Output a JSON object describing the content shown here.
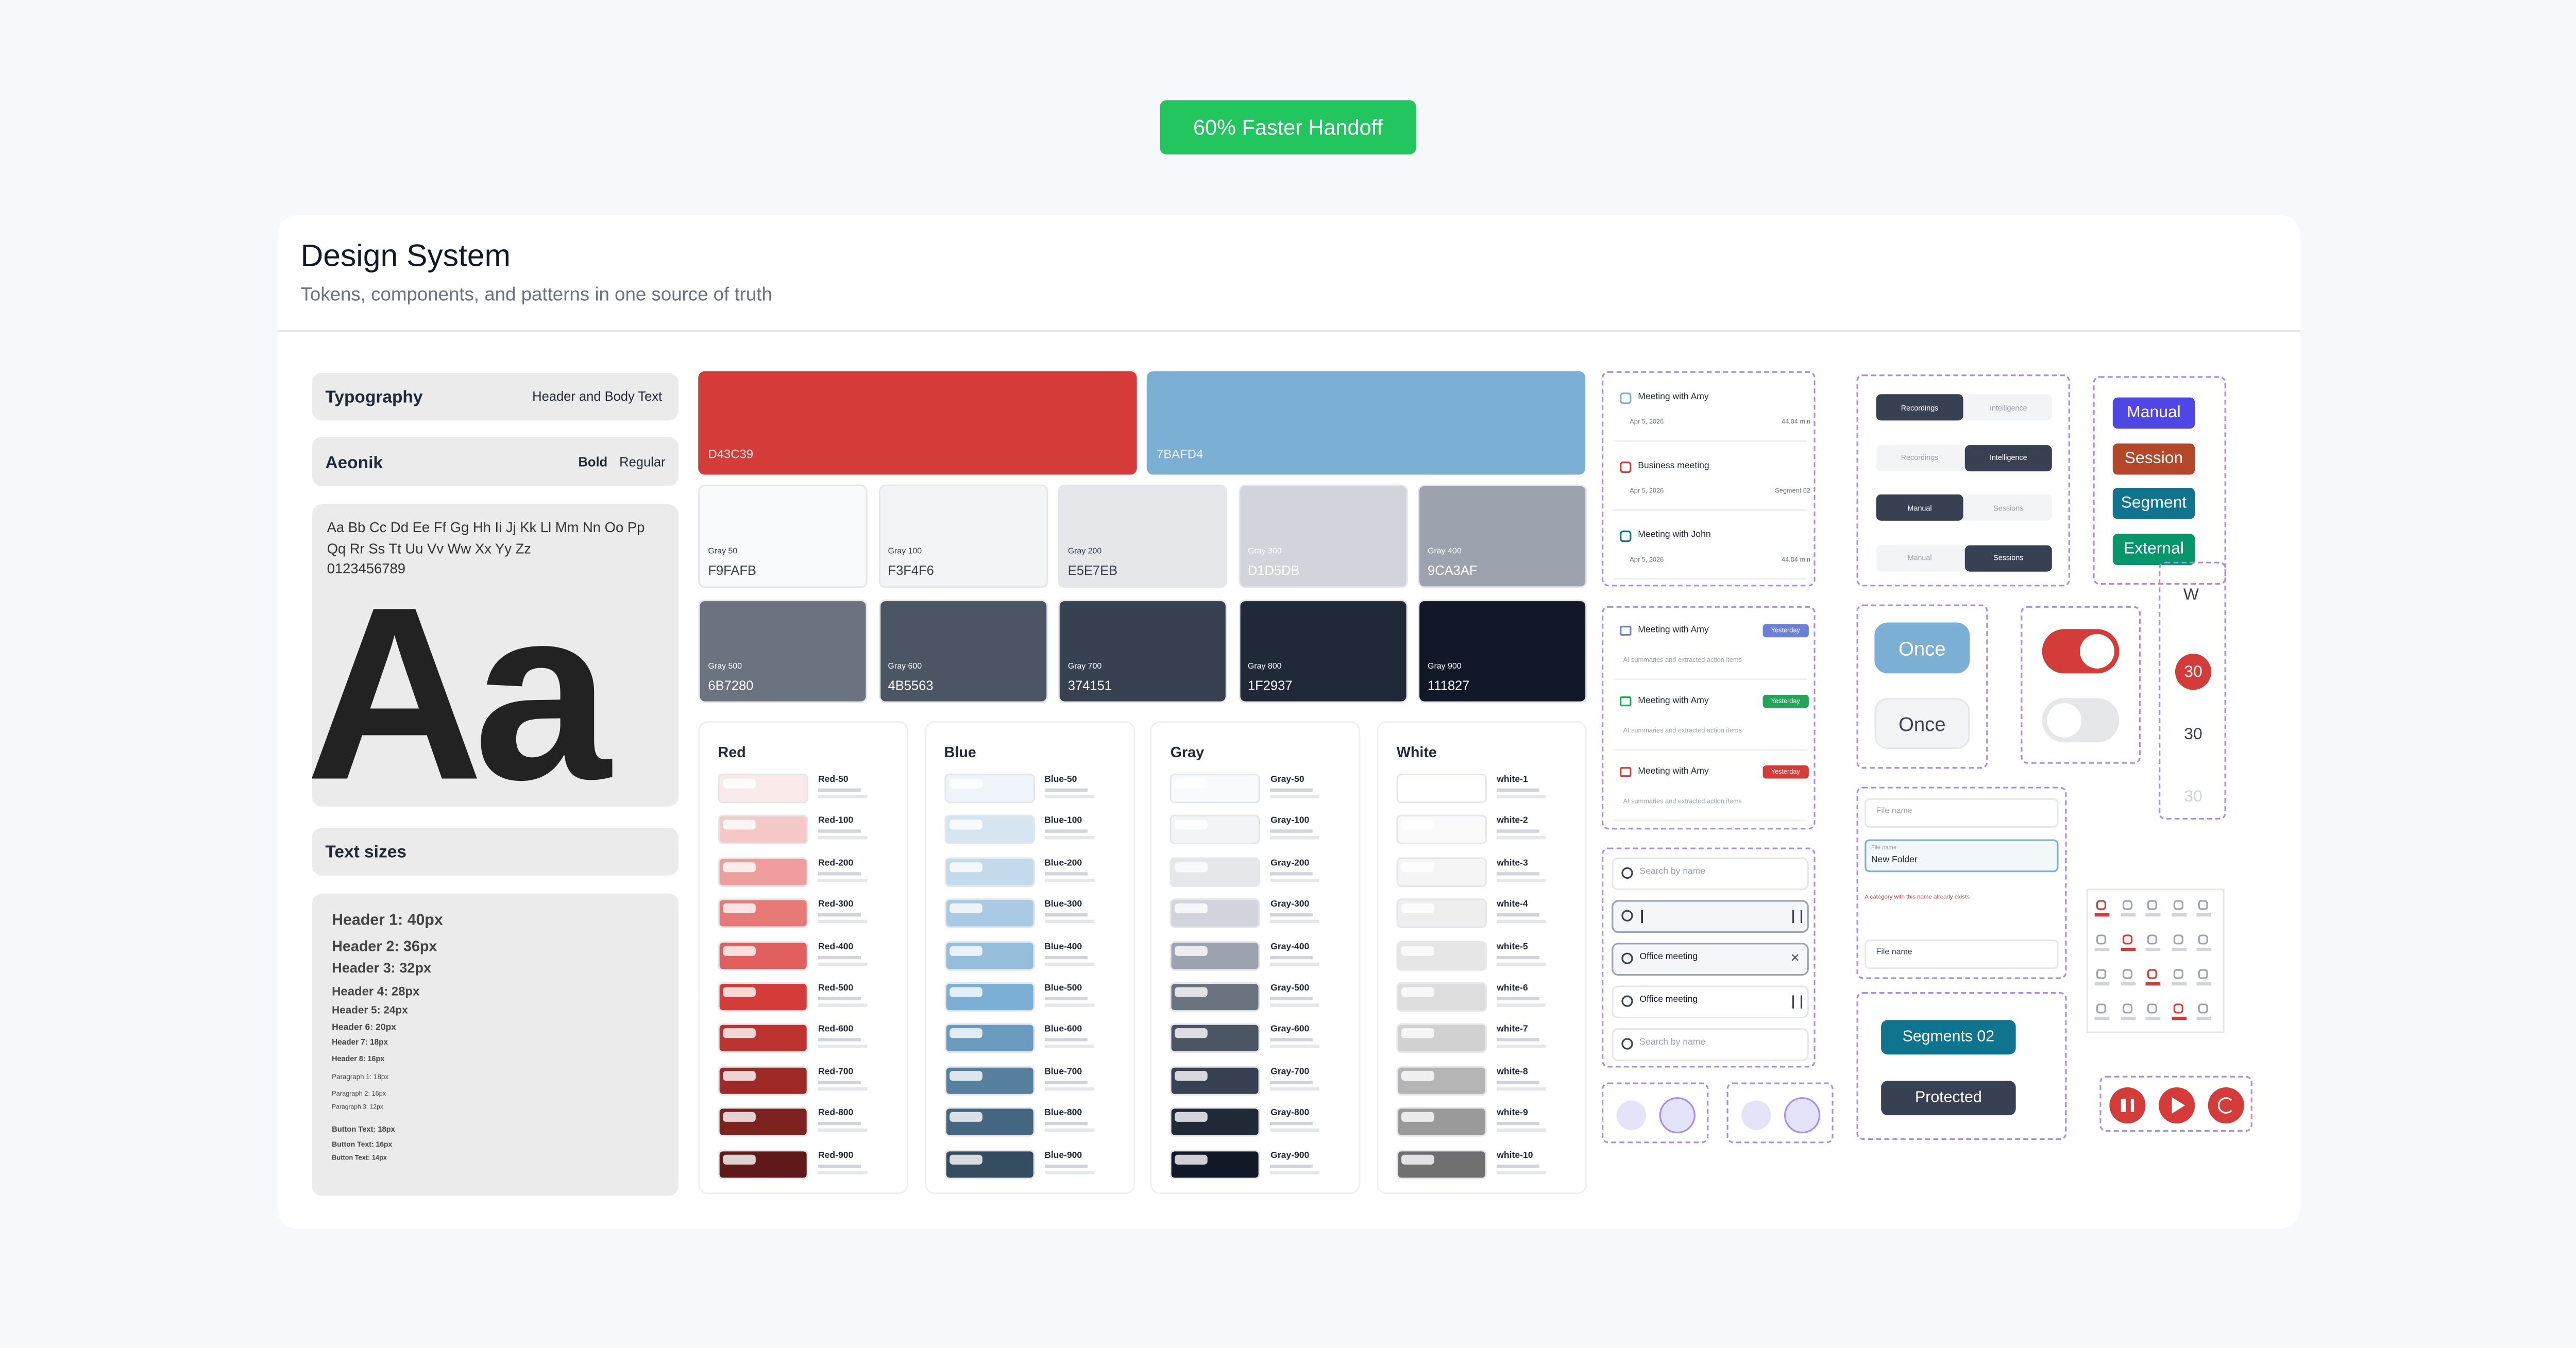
{
  "badge": "60% Faster Handoff",
  "header": {
    "title": "Design System",
    "subtitle": "Tokens, components, and patterns in one source of truth"
  },
  "typography": {
    "title": "Typography",
    "note": "Header and Body Text",
    "font": "Aeonik",
    "weights": [
      "Bold",
      "Regular"
    ],
    "alphabet": [
      "Aa Bb Cc Dd Ee Ff Gg Hh Ii Jj Kk Ll Mm Nn Oo Pp",
      "Qq Rr Ss Tt Uu Vv Ww Xx Yy Zz",
      "0123456789"
    ],
    "sample": "Aa"
  },
  "text_sizes": {
    "title": "Text sizes",
    "items": [
      "Header 1: 40px",
      "Header 2: 36px",
      "Header 3: 32px",
      "Header 4: 28px",
      "Header 5: 24px",
      "Header 6: 20px",
      "Header 7: 18px",
      "Header 8: 16px",
      "Paragraph 1: 18px",
      "Paragraph 2: 16px",
      "Paragraph 3: 12px",
      "Button Text: 18px",
      "Button Text: 16px",
      "Button Text: 14px"
    ]
  },
  "primary_colors": [
    "D43C39",
    "7BAFD4"
  ],
  "gray_swatches": [
    {
      "name": "Gray 50",
      "hex": "F9FAFB"
    },
    {
      "name": "Gray 100",
      "hex": "F3F4F6"
    },
    {
      "name": "Gray 200",
      "hex": "E5E7EB"
    },
    {
      "name": "Gray 300",
      "hex": "D1D5DB"
    },
    {
      "name": "Gray 400",
      "hex": "9CA3AF"
    },
    {
      "name": "Gray 500",
      "hex": "6B7280"
    },
    {
      "name": "Gray 600",
      "hex": "4B5563"
    },
    {
      "name": "Gray 700",
      "hex": "374151"
    },
    {
      "name": "Gray 800",
      "hex": "1F2937"
    },
    {
      "name": "Gray 900",
      "hex": "111827"
    }
  ],
  "palettes": [
    {
      "title": "Red",
      "shades": [
        {
          "name": "Red-50",
          "color": "#FBEAEA"
        },
        {
          "name": "Red-100",
          "color": "#F5C9C8"
        },
        {
          "name": "Red-200",
          "color": "#EE9F9D"
        },
        {
          "name": "Red-300",
          "color": "#E77A77"
        },
        {
          "name": "Red-400",
          "color": "#E0605D"
        },
        {
          "name": "Red-500",
          "color": "#D43C39"
        },
        {
          "name": "Red-600",
          "color": "#BD3330"
        },
        {
          "name": "Red-700",
          "color": "#9E2A28"
        },
        {
          "name": "Red-800",
          "color": "#7E2220"
        },
        {
          "name": "Red-900",
          "color": "#5E1918"
        }
      ]
    },
    {
      "title": "Blue",
      "shades": [
        {
          "name": "Blue-50",
          "color": "#EEF4FA"
        },
        {
          "name": "Blue-100",
          "color": "#D5E5F2"
        },
        {
          "name": "Blue-200",
          "color": "#C2DAEC"
        },
        {
          "name": "Blue-300",
          "color": "#A8CAE4"
        },
        {
          "name": "Blue-400",
          "color": "#95BEDD"
        },
        {
          "name": "Blue-500",
          "color": "#7BAFD4"
        },
        {
          "name": "Blue-600",
          "color": "#6A9ABD"
        },
        {
          "name": "Blue-700",
          "color": "#57809F"
        },
        {
          "name": "Blue-800",
          "color": "#456680"
        },
        {
          "name": "Blue-900",
          "color": "#334C60"
        }
      ]
    },
    {
      "title": "Gray",
      "shades": [
        {
          "name": "Gray-50",
          "color": "#F9FAFB"
        },
        {
          "name": "Gray-100",
          "color": "#F3F4F6"
        },
        {
          "name": "Gray-200",
          "color": "#E5E7EB"
        },
        {
          "name": "Gray-300",
          "color": "#D1D5DB"
        },
        {
          "name": "Gray-400",
          "color": "#9CA3AF"
        },
        {
          "name": "Gray-500",
          "color": "#6B7280"
        },
        {
          "name": "Gray-600",
          "color": "#4B5563"
        },
        {
          "name": "Gray-700",
          "color": "#374151"
        },
        {
          "name": "Gray-800",
          "color": "#1F2937"
        },
        {
          "name": "Gray-900",
          "color": "#111827"
        }
      ]
    },
    {
      "title": "White",
      "shades": [
        {
          "name": "white-1",
          "color": "#FFFFFF"
        },
        {
          "name": "white-2",
          "color": "#FAFAFA"
        },
        {
          "name": "white-3",
          "color": "#F5F5F5"
        },
        {
          "name": "white-4",
          "color": "#EEEEEE"
        },
        {
          "name": "white-5",
          "color": "#E6E6E6"
        },
        {
          "name": "white-6",
          "color": "#DDDDDD"
        },
        {
          "name": "white-7",
          "color": "#D1D1D1"
        },
        {
          "name": "white-8",
          "color": "#B5B5B5"
        },
        {
          "name": "white-9",
          "color": "#9A9A9A"
        },
        {
          "name": "white-10",
          "color": "#707070"
        }
      ]
    }
  ],
  "meetings": [
    {
      "title": "Meeting with Amy",
      "date": "Apr 5, 2026",
      "meta": "44.04 min"
    },
    {
      "title": "Business meeting",
      "date": "Apr 5, 2026",
      "meta": "Segment 02"
    },
    {
      "title": "Meeting with John",
      "date": "Apr 5, 2026",
      "meta": "44.04 min"
    }
  ],
  "meeting_summaries": [
    {
      "title": "Meeting with Amy",
      "status": "Yesterday",
      "summary": "AI summaries and extracted action items",
      "color": "#6B7FD7"
    },
    {
      "title": "Meeting with Amy",
      "status": "Yesterday",
      "summary": "AI summaries and extracted action items",
      "color": "#22A559"
    },
    {
      "title": "Meeting with Amy",
      "status": "Yesterday",
      "summary": "AI summaries and extracted action items",
      "color": "#D43C39"
    }
  ],
  "searches": [
    "Search by name",
    "Office meeting",
    "Office meeting",
    "Search by name"
  ],
  "tabs": [
    [
      "Recordings",
      "Intelligence"
    ],
    [
      "Recordings",
      "Intelligence"
    ],
    [
      "Manual",
      "Sessions"
    ],
    [
      "Manual",
      "Sessions"
    ]
  ],
  "tags": [
    {
      "label": "Manual",
      "color": "#4F46E5"
    },
    {
      "label": "Session",
      "color": "#B4472A"
    },
    {
      "label": "Segment",
      "color": "#0E7490"
    },
    {
      "label": "External",
      "color": "#059669"
    }
  ],
  "once_buttons": [
    "Once",
    "Once"
  ],
  "day_picker": {
    "weekday": "W",
    "days": [
      "30",
      "30",
      "30"
    ]
  },
  "file_inputs": {
    "label": "File name",
    "value": "New Folder",
    "error": "A category with this name already exists"
  },
  "chips": [
    "Segments 02",
    "Protected"
  ]
}
